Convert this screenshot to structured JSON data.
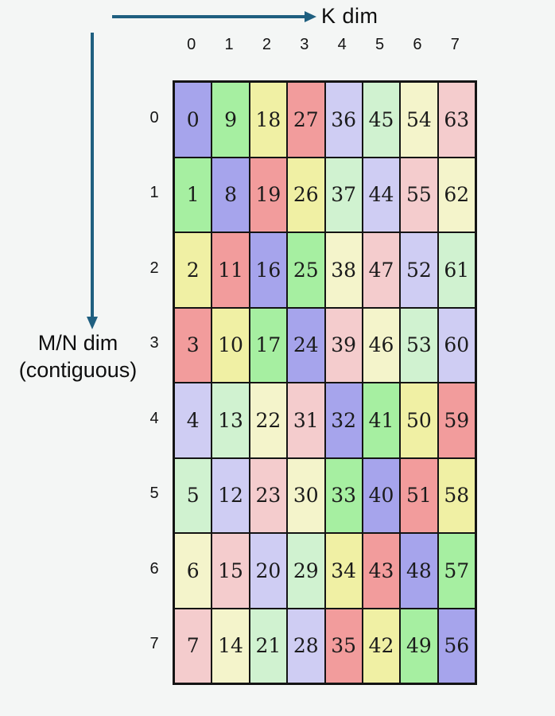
{
  "background_color": "#f4f6f5",
  "diagram": {
    "k_axis_label": "K dim",
    "mn_axis_label_line1": "M/N dim",
    "mn_axis_label_line2": "(contiguous)",
    "arrow_color": "#1f5f80"
  },
  "axes": {
    "col_labels": [
      "0",
      "1",
      "2",
      "3",
      "4",
      "5",
      "6",
      "7"
    ],
    "row_labels": [
      "0",
      "1",
      "2",
      "3",
      "4",
      "5",
      "6",
      "7"
    ]
  },
  "matrix": {
    "rows": [
      [
        0,
        9,
        18,
        27,
        36,
        45,
        54,
        63
      ],
      [
        1,
        8,
        19,
        26,
        37,
        44,
        55,
        62
      ],
      [
        2,
        11,
        16,
        25,
        38,
        47,
        52,
        61
      ],
      [
        3,
        10,
        17,
        24,
        39,
        46,
        53,
        60
      ],
      [
        4,
        13,
        22,
        31,
        32,
        41,
        50,
        59
      ],
      [
        5,
        12,
        23,
        30,
        33,
        40,
        51,
        58
      ],
      [
        6,
        15,
        20,
        29,
        34,
        43,
        48,
        57
      ],
      [
        7,
        14,
        21,
        28,
        35,
        42,
        49,
        56
      ]
    ],
    "palette_by_value_mod8": [
      "#a6a4ec",
      "#a6efa1",
      "#f0f0a4",
      "#f29c9c",
      "#cfcdf3",
      "#d0f2d0",
      "#f4f4cb",
      "#f4cccd"
    ],
    "cell_border_color": "#141414"
  }
}
